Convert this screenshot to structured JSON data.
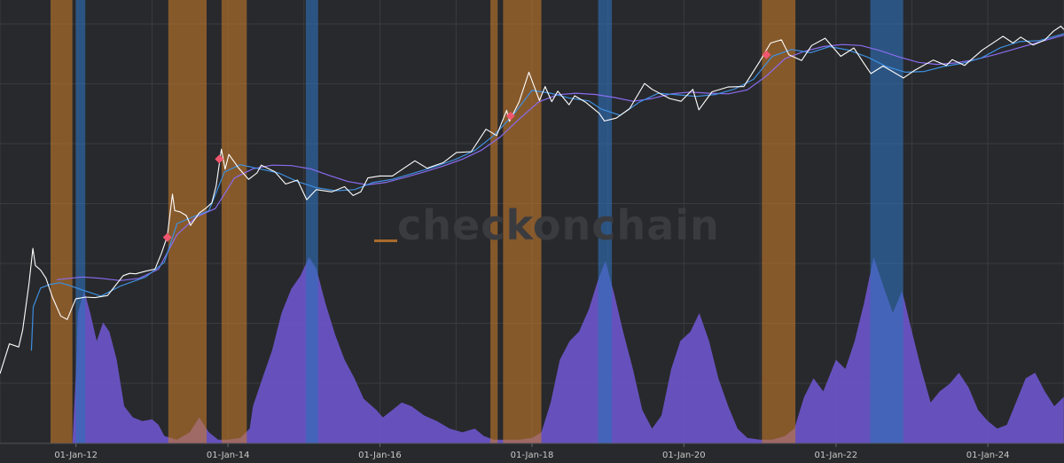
{
  "watermark": "checkonchain",
  "chart_data": {
    "type": "area",
    "title": "",
    "xlabel": "",
    "ylabel": "",
    "x_range": [
      "2011-01-01",
      "2025-01-01"
    ],
    "y_scale": "log",
    "grid": true,
    "x_tick_labels": [
      "01-Jan-12",
      "01-Jan-14",
      "01-Jan-16",
      "01-Jan-18",
      "01-Jan-20",
      "01-Jan-22",
      "01-Jan-24"
    ],
    "colors": {
      "background": "#28292c",
      "price": "#ffffff",
      "short_ma": "#3d8fe0",
      "long_ma": "#8a6cf0",
      "oscillator_fill": "#6b55c9",
      "orange_band": "#c47a2c",
      "blue_band": "#2e6fb8",
      "marker": "#f0566e"
    },
    "orange_bands": [
      [
        "2011-09-01",
        "2011-12-15"
      ],
      [
        "2013-03-20",
        "2013-09-20"
      ],
      [
        "2013-12-01",
        "2014-04-01"
      ],
      [
        "2017-06-15",
        "2017-07-20"
      ],
      [
        "2017-08-15",
        "2018-02-15"
      ],
      [
        "2021-01-10",
        "2021-06-20"
      ]
    ],
    "blue_bands": [
      [
        "2012-01-01",
        "2012-02-15"
      ],
      [
        "2015-01-10",
        "2015-03-10"
      ],
      [
        "2018-11-15",
        "2019-01-20"
      ],
      [
        "2022-06-15",
        "2022-11-20"
      ]
    ],
    "price_points": [
      [
        "2011-01-01",
        0.3
      ],
      [
        "2011-02-15",
        0.9
      ],
      [
        "2011-04-01",
        0.8
      ],
      [
        "2011-04-20",
        1.5
      ],
      [
        "2011-05-20",
        8
      ],
      [
        "2011-06-08",
        30
      ],
      [
        "2011-06-20",
        16
      ],
      [
        "2011-07-15",
        13.5
      ],
      [
        "2011-08-10",
        10
      ],
      [
        "2011-09-10",
        5
      ],
      [
        "2011-10-20",
        2.5
      ],
      [
        "2011-11-20",
        2.2
      ],
      [
        "2011-12-31",
        4.7
      ],
      [
        "2012-02-15",
        5
      ],
      [
        "2012-04-01",
        4.9
      ],
      [
        "2012-06-01",
        5.3
      ],
      [
        "2012-08-15",
        11
      ],
      [
        "2012-09-15",
        12
      ],
      [
        "2012-10-15",
        11.8
      ],
      [
        "2012-12-01",
        13
      ],
      [
        "2013-01-15",
        14
      ],
      [
        "2013-02-15",
        25
      ],
      [
        "2013-03-15",
        47
      ],
      [
        "2013-04-09",
        220
      ],
      [
        "2013-04-20",
        120
      ],
      [
        "2013-05-15",
        115
      ],
      [
        "2013-06-15",
        100
      ],
      [
        "2013-07-05",
        70
      ],
      [
        "2013-08-15",
        110
      ],
      [
        "2013-09-15",
        130
      ],
      [
        "2013-10-15",
        160
      ],
      [
        "2013-11-05",
        300
      ],
      [
        "2013-11-30",
        1150
      ],
      [
        "2013-12-18",
        550
      ],
      [
        "2014-01-05",
        950
      ],
      [
        "2014-02-20",
        580
      ],
      [
        "2014-04-10",
        380
      ],
      [
        "2014-05-20",
        480
      ],
      [
        "2014-06-10",
        640
      ],
      [
        "2014-08-15",
        500
      ],
      [
        "2014-10-05",
        320
      ],
      [
        "2014-12-01",
        370
      ],
      [
        "2015-01-14",
        180
      ],
      [
        "2015-03-01",
        260
      ],
      [
        "2015-05-15",
        240
      ],
      [
        "2015-07-15",
        290
      ],
      [
        "2015-08-25",
        210
      ],
      [
        "2015-10-01",
        240
      ],
      [
        "2015-11-04",
        400
      ],
      [
        "2015-12-31",
        430
      ],
      [
        "2016-03-01",
        430
      ],
      [
        "2016-06-17",
        750
      ],
      [
        "2016-08-15",
        570
      ],
      [
        "2016-10-31",
        700
      ],
      [
        "2017-01-03",
        1020
      ],
      [
        "2017-03-15",
        1050
      ],
      [
        "2017-05-25",
        2400
      ],
      [
        "2017-07-15",
        1900
      ],
      [
        "2017-09-01",
        4800
      ],
      [
        "2017-09-15",
        3200
      ],
      [
        "2017-11-01",
        6700
      ],
      [
        "2017-12-17",
        19500
      ],
      [
        "2018-02-06",
        6900
      ],
      [
        "2018-03-05",
        11500
      ],
      [
        "2018-04-06",
        6600
      ],
      [
        "2018-05-05",
        9700
      ],
      [
        "2018-06-28",
        5900
      ],
      [
        "2018-07-25",
        8200
      ],
      [
        "2018-09-15",
        6500
      ],
      [
        "2018-11-20",
        4300
      ],
      [
        "2018-12-15",
        3250
      ],
      [
        "2019-02-10",
        3600
      ],
      [
        "2019-04-15",
        5100
      ],
      [
        "2019-06-26",
        12900
      ],
      [
        "2019-08-01",
        10400
      ],
      [
        "2019-10-25",
        7400
      ],
      [
        "2019-12-18",
        6700
      ],
      [
        "2020-02-13",
        10400
      ],
      [
        "2020-03-13",
        4900
      ],
      [
        "2020-05-15",
        9500
      ],
      [
        "2020-07-31",
        11300
      ],
      [
        "2020-10-15",
        11500
      ],
      [
        "2020-12-31",
        29000
      ],
      [
        "2021-02-21",
        57000
      ],
      [
        "2021-04-14",
        64000
      ],
      [
        "2021-05-20",
        37000
      ],
      [
        "2021-07-20",
        30000
      ],
      [
        "2021-09-06",
        52000
      ],
      [
        "2021-11-10",
        68000
      ],
      [
        "2022-01-24",
        35000
      ],
      [
        "2022-03-28",
        47500
      ],
      [
        "2022-05-12",
        28000
      ],
      [
        "2022-06-18",
        18500
      ],
      [
        "2022-08-15",
        24500
      ],
      [
        "2022-11-21",
        15800
      ],
      [
        "2023-01-15",
        21000
      ],
      [
        "2023-04-14",
        30500
      ],
      [
        "2023-06-15",
        25000
      ],
      [
        "2023-07-14",
        31000
      ],
      [
        "2023-09-11",
        25000
      ],
      [
        "2023-12-05",
        44000
      ],
      [
        "2024-03-14",
        73000
      ],
      [
        "2024-05-01",
        57000
      ],
      [
        "2024-06-07",
        71000
      ],
      [
        "2024-08-05",
        53000
      ],
      [
        "2024-09-30",
        63500
      ],
      [
        "2024-11-11",
        88000
      ],
      [
        "2024-12-17",
        106000
      ],
      [
        "2024-12-31",
        94000
      ]
    ],
    "short_ma_points": [
      [
        "2011-06-01",
        0.7
      ],
      [
        "2011-06-10",
        3.5
      ],
      [
        "2011-07-15",
        7
      ],
      [
        "2011-09-01",
        8
      ],
      [
        "2011-10-15",
        8.5
      ],
      [
        "2011-12-01",
        7.7
      ],
      [
        "2012-02-01",
        6.5
      ],
      [
        "2012-05-01",
        5.2
      ],
      [
        "2012-08-01",
        7.5
      ],
      [
        "2012-12-01",
        10.5
      ],
      [
        "2013-03-01",
        18
      ],
      [
        "2013-05-01",
        75
      ],
      [
        "2013-08-01",
        100
      ],
      [
        "2013-10-01",
        120
      ],
      [
        "2013-12-15",
        500
      ],
      [
        "2014-03-01",
        650
      ],
      [
        "2014-06-01",
        560
      ],
      [
        "2014-09-01",
        480
      ],
      [
        "2014-12-01",
        350
      ],
      [
        "2015-03-01",
        280
      ],
      [
        "2015-06-01",
        250
      ],
      [
        "2015-09-01",
        260
      ],
      [
        "2015-12-01",
        340
      ],
      [
        "2016-03-01",
        380
      ],
      [
        "2016-07-01",
        500
      ],
      [
        "2016-10-01",
        620
      ],
      [
        "2017-01-01",
        800
      ],
      [
        "2017-04-01",
        1100
      ],
      [
        "2017-07-01",
        1900
      ],
      [
        "2017-10-01",
        4000
      ],
      [
        "2018-01-01",
        10000
      ],
      [
        "2018-04-01",
        9000
      ],
      [
        "2018-07-01",
        7500
      ],
      [
        "2018-10-01",
        6800
      ],
      [
        "2018-12-01",
        5000
      ],
      [
        "2019-03-01",
        4000
      ],
      [
        "2019-06-01",
        6500
      ],
      [
        "2019-09-01",
        9000
      ],
      [
        "2019-12-01",
        8500
      ],
      [
        "2020-03-01",
        8000
      ],
      [
        "2020-06-01",
        8600
      ],
      [
        "2020-09-01",
        10500
      ],
      [
        "2020-12-01",
        15000
      ],
      [
        "2021-03-01",
        35000
      ],
      [
        "2021-06-01",
        45000
      ],
      [
        "2021-09-01",
        40000
      ],
      [
        "2021-12-01",
        50000
      ],
      [
        "2022-03-01",
        44000
      ],
      [
        "2022-06-01",
        34000
      ],
      [
        "2022-09-01",
        24000
      ],
      [
        "2022-12-01",
        19500
      ],
      [
        "2023-03-01",
        20000
      ],
      [
        "2023-06-01",
        24000
      ],
      [
        "2023-09-01",
        27000
      ],
      [
        "2023-12-01",
        33000
      ],
      [
        "2024-03-01",
        48000
      ],
      [
        "2024-06-01",
        60000
      ],
      [
        "2024-09-01",
        62000
      ],
      [
        "2024-12-31",
        80000
      ]
    ],
    "long_ma_points": [
      [
        "2011-10-01",
        9.5
      ],
      [
        "2011-12-01",
        10
      ],
      [
        "2012-02-01",
        10.5
      ],
      [
        "2012-05-01",
        10
      ],
      [
        "2012-08-01",
        9.2
      ],
      [
        "2012-11-01",
        10
      ],
      [
        "2013-02-01",
        14
      ],
      [
        "2013-05-01",
        50
      ],
      [
        "2013-08-01",
        95
      ],
      [
        "2013-11-01",
        130
      ],
      [
        "2014-02-01",
        400
      ],
      [
        "2014-05-01",
        560
      ],
      [
        "2014-08-01",
        640
      ],
      [
        "2014-11-01",
        630
      ],
      [
        "2015-02-01",
        560
      ],
      [
        "2015-05-01",
        440
      ],
      [
        "2015-08-01",
        350
      ],
      [
        "2015-11-01",
        310
      ],
      [
        "2016-02-01",
        340
      ],
      [
        "2016-05-01",
        410
      ],
      [
        "2016-08-01",
        500
      ],
      [
        "2016-11-01",
        620
      ],
      [
        "2017-02-01",
        800
      ],
      [
        "2017-05-01",
        1100
      ],
      [
        "2017-08-01",
        1800
      ],
      [
        "2017-11-01",
        3500
      ],
      [
        "2018-02-01",
        6500
      ],
      [
        "2018-05-01",
        8500
      ],
      [
        "2018-08-01",
        9000
      ],
      [
        "2018-11-01",
        8600
      ],
      [
        "2019-02-01",
        7700
      ],
      [
        "2019-05-01",
        6700
      ],
      [
        "2019-08-01",
        7400
      ],
      [
        "2019-11-01",
        8800
      ],
      [
        "2020-02-01",
        9400
      ],
      [
        "2020-05-01",
        9000
      ],
      [
        "2020-08-01",
        8800
      ],
      [
        "2020-11-01",
        10200
      ],
      [
        "2021-02-01",
        17000
      ],
      [
        "2021-05-01",
        32000
      ],
      [
        "2021-08-01",
        42000
      ],
      [
        "2021-11-01",
        50000
      ],
      [
        "2022-02-01",
        54000
      ],
      [
        "2022-05-01",
        52000
      ],
      [
        "2022-08-01",
        43000
      ],
      [
        "2022-11-01",
        34000
      ],
      [
        "2023-02-01",
        28000
      ],
      [
        "2023-05-01",
        26000
      ],
      [
        "2023-08-01",
        27500
      ],
      [
        "2023-11-01",
        31000
      ],
      [
        "2024-02-01",
        37000
      ],
      [
        "2024-05-01",
        45000
      ],
      [
        "2024-08-01",
        55000
      ],
      [
        "2024-12-31",
        76000
      ]
    ],
    "markers": [
      [
        "2013-03-15",
        45
      ],
      [
        "2013-11-20",
        800
      ],
      [
        "2017-09-20",
        3900
      ],
      [
        "2021-02-01",
        37000
      ]
    ],
    "oscillator": {
      "y_range": [
        0,
        100
      ],
      "points": [
        [
          "2011-09-01",
          0
        ],
        [
          "2011-12-15",
          0
        ],
        [
          "2012-01-01",
          38
        ],
        [
          "2012-01-10",
          70
        ],
        [
          "2012-02-10",
          82
        ],
        [
          "2012-03-10",
          70
        ],
        [
          "2012-04-10",
          55
        ],
        [
          "2012-05-10",
          65
        ],
        [
          "2012-06-10",
          60
        ],
        [
          "2012-07-15",
          45
        ],
        [
          "2012-08-20",
          20
        ],
        [
          "2012-10-01",
          14
        ],
        [
          "2012-11-15",
          12
        ],
        [
          "2013-01-01",
          13
        ],
        [
          "2013-02-01",
          10
        ],
        [
          "2013-03-01",
          4
        ],
        [
          "2013-05-01",
          2
        ],
        [
          "2013-07-01",
          6
        ],
        [
          "2013-08-15",
          14
        ],
        [
          "2013-10-01",
          6
        ],
        [
          "2013-11-15",
          2
        ],
        [
          "2014-01-01",
          2
        ],
        [
          "2014-03-01",
          3
        ],
        [
          "2014-04-15",
          8
        ],
        [
          "2014-05-01",
          20
        ],
        [
          "2014-06-15",
          35
        ],
        [
          "2014-08-01",
          50
        ],
        [
          "2014-09-15",
          70
        ],
        [
          "2014-11-01",
          83
        ],
        [
          "2014-12-15",
          90
        ],
        [
          "2015-01-25",
          100
        ],
        [
          "2015-03-01",
          94
        ],
        [
          "2015-04-15",
          75
        ],
        [
          "2015-06-01",
          58
        ],
        [
          "2015-07-15",
          45
        ],
        [
          "2015-09-01",
          35
        ],
        [
          "2015-10-15",
          24
        ],
        [
          "2015-12-15",
          18
        ],
        [
          "2016-01-15",
          14
        ],
        [
          "2016-03-01",
          18
        ],
        [
          "2016-04-15",
          22
        ],
        [
          "2016-06-01",
          20
        ],
        [
          "2016-08-01",
          15
        ],
        [
          "2016-10-01",
          12
        ],
        [
          "2016-12-01",
          8
        ],
        [
          "2017-02-01",
          6
        ],
        [
          "2017-04-01",
          8
        ],
        [
          "2017-05-15",
          4
        ],
        [
          "2017-07-01",
          2
        ],
        [
          "2017-09-01",
          2
        ],
        [
          "2017-11-01",
          2
        ],
        [
          "2018-01-01",
          3
        ],
        [
          "2018-02-15",
          6
        ],
        [
          "2018-04-01",
          22
        ],
        [
          "2018-05-15",
          45
        ],
        [
          "2018-07-01",
          55
        ],
        [
          "2018-08-15",
          60
        ],
        [
          "2018-10-01",
          72
        ],
        [
          "2018-11-15",
          88
        ],
        [
          "2018-12-20",
          98
        ],
        [
          "2019-02-01",
          80
        ],
        [
          "2019-03-15",
          60
        ],
        [
          "2019-05-01",
          40
        ],
        [
          "2019-06-15",
          18
        ],
        [
          "2019-08-01",
          8
        ],
        [
          "2019-09-15",
          15
        ],
        [
          "2019-11-01",
          40
        ],
        [
          "2019-12-15",
          55
        ],
        [
          "2020-02-01",
          60
        ],
        [
          "2020-03-15",
          70
        ],
        [
          "2020-05-01",
          55
        ],
        [
          "2020-06-15",
          35
        ],
        [
          "2020-08-01",
          20
        ],
        [
          "2020-09-15",
          8
        ],
        [
          "2020-11-01",
          3
        ],
        [
          "2021-01-01",
          2
        ],
        [
          "2021-03-01",
          2
        ],
        [
          "2021-05-01",
          4
        ],
        [
          "2021-06-15",
          8
        ],
        [
          "2021-08-01",
          25
        ],
        [
          "2021-09-15",
          35
        ],
        [
          "2021-11-01",
          28
        ],
        [
          "2022-01-01",
          45
        ],
        [
          "2022-02-15",
          40
        ],
        [
          "2022-04-01",
          55
        ],
        [
          "2022-05-15",
          75
        ],
        [
          "2022-07-01",
          100
        ],
        [
          "2022-08-15",
          85
        ],
        [
          "2022-10-01",
          70
        ],
        [
          "2022-11-15",
          82
        ],
        [
          "2023-01-01",
          60
        ],
        [
          "2023-02-15",
          40
        ],
        [
          "2023-04-01",
          22
        ],
        [
          "2023-05-15",
          28
        ],
        [
          "2023-07-01",
          32
        ],
        [
          "2023-08-15",
          38
        ],
        [
          "2023-10-01",
          30
        ],
        [
          "2023-11-15",
          18
        ],
        [
          "2024-01-01",
          12
        ],
        [
          "2024-02-15",
          8
        ],
        [
          "2024-04-01",
          10
        ],
        [
          "2024-05-15",
          22
        ],
        [
          "2024-07-01",
          35
        ],
        [
          "2024-08-15",
          38
        ],
        [
          "2024-10-01",
          28
        ],
        [
          "2024-11-15",
          20
        ],
        [
          "2024-12-31",
          25
        ]
      ]
    }
  }
}
